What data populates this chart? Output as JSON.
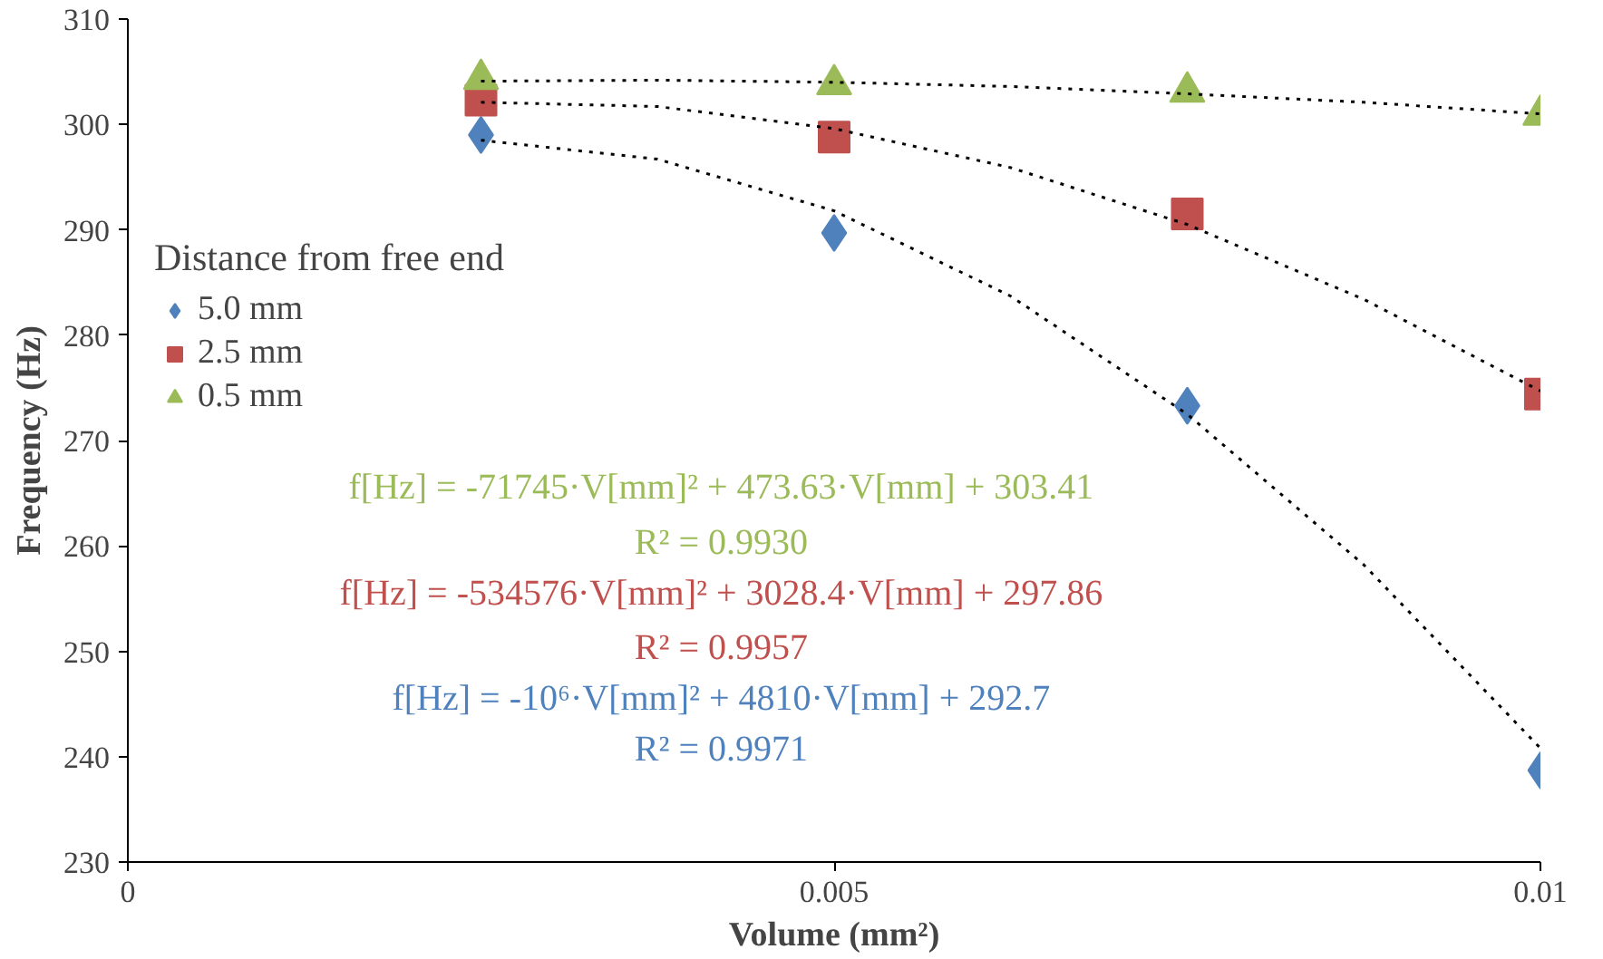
{
  "chart_data": {
    "type": "scatter",
    "xlabel": "Volume (mm²)",
    "ylabel": "Frequency (Hz)",
    "legend_title": "Distance from free end",
    "legend": "left",
    "xlim": [
      0,
      0.01
    ],
    "ylim": [
      230,
      310
    ],
    "xticks": [
      0,
      0.005,
      0.01
    ],
    "yticks": [
      230,
      240,
      250,
      260,
      270,
      280,
      290,
      300,
      310
    ],
    "grid": false,
    "x": [
      0.0025,
      0.005,
      0.0075,
      0.01
    ],
    "series": [
      {
        "name": "5.0 mm",
        "color": "#4f81bd",
        "marker": "diamond",
        "values": [
          299,
          289.7,
          273.3,
          238.7
        ]
      },
      {
        "name": "2.5 mm",
        "color": "#c0504d",
        "marker": "square",
        "values": [
          302.3,
          298.8,
          291.5,
          274.4
        ]
      },
      {
        "name": "0.5 mm",
        "color": "#9bbb59",
        "marker": "triangle",
        "values": [
          304.3,
          303.8,
          303.1,
          300.9
        ]
      },
      {
        "type": "line",
        "line_style": "dotted",
        "color": "#000000",
        "x": [
          0.0025,
          0.00375,
          0.005,
          0.00625,
          0.0075,
          0.00875,
          0.01
        ],
        "values": [
          298.5,
          296.7,
          291.8,
          283.7,
          272.5,
          258.2,
          240.8
        ]
      },
      {
        "type": "line",
        "line_style": "dotted",
        "color": "#000000",
        "x": [
          0.0025,
          0.00375,
          0.005,
          0.00625,
          0.0075,
          0.00875,
          0.01
        ],
        "values": [
          302.1,
          301.7,
          299.6,
          295.9,
          290.5,
          283.4,
          274.7
        ]
      },
      {
        "type": "line",
        "line_style": "dotted",
        "color": "#000000",
        "x": [
          0.0025,
          0.00375,
          0.005,
          0.00625,
          0.0075,
          0.00875,
          0.01
        ],
        "values": [
          304.1,
          304.2,
          304.0,
          303.6,
          302.9,
          302.1,
          301.0
        ]
      }
    ],
    "annotations": [
      "f[Hz] = -71745·V[mm]² + 473.63·V[mm] + 303.41",
      "R² = 0.9930",
      "f[Hz] = -534576·V[mm]² + 3028.4·V[mm] + 297.86",
      "R² = 0.9957",
      "f[Hz] = -10⁶·V[mm]² + 4810·V[mm] + 292.7",
      "R² = 0.9971"
    ]
  }
}
